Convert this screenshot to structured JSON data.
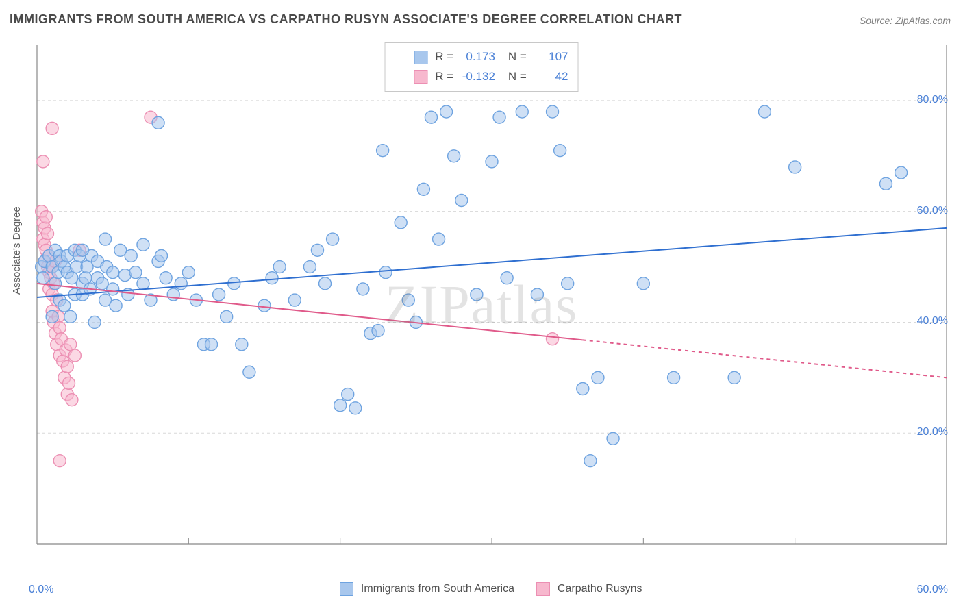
{
  "title": "IMMIGRANTS FROM SOUTH AMERICA VS CARPATHO RUSYN ASSOCIATE'S DEGREE CORRELATION CHART",
  "source": "Source: ZipAtlas.com",
  "watermark": "ZIPatlas",
  "ylabel": "Associate's Degree",
  "chart": {
    "type": "scatter",
    "xlim": [
      0,
      60
    ],
    "ylim": [
      0,
      90
    ],
    "xtick_step": 10,
    "ytick_step": 20,
    "x_label_min": "0.0%",
    "x_label_max": "60.0%",
    "y_labels": [
      "20.0%",
      "40.0%",
      "60.0%",
      "80.0%"
    ],
    "y_label_values": [
      20,
      40,
      60,
      80
    ],
    "grid_color": "#d8d8d8",
    "axis_color": "#888888",
    "tick_label_color": "#4a80d6",
    "background": "#ffffff",
    "marker_radius": 9,
    "marker_stroke_width": 1.4,
    "series": [
      {
        "name": "Immigrants from South America",
        "fill": "#a8c7ed",
        "stroke": "#6ea3e0",
        "fill_opacity": 0.55,
        "r_value": "0.173",
        "n_value": "107",
        "trend": {
          "x1": 0,
          "y1": 44.5,
          "x2": 60,
          "y2": 57,
          "color": "#2f6fd0",
          "width": 2
        },
        "points": [
          [
            0.3,
            50
          ],
          [
            0.4,
            48
          ],
          [
            0.5,
            51
          ],
          [
            0.8,
            52
          ],
          [
            1.0,
            41
          ],
          [
            1.0,
            50
          ],
          [
            1.2,
            53
          ],
          [
            1.2,
            47
          ],
          [
            1.4,
            49
          ],
          [
            1.5,
            52
          ],
          [
            1.5,
            44
          ],
          [
            1.6,
            51
          ],
          [
            1.8,
            50
          ],
          [
            1.8,
            43
          ],
          [
            2.0,
            52
          ],
          [
            2.0,
            49
          ],
          [
            2.2,
            41
          ],
          [
            2.3,
            48
          ],
          [
            2.5,
            53
          ],
          [
            2.5,
            45
          ],
          [
            2.6,
            50
          ],
          [
            2.8,
            52
          ],
          [
            3.0,
            47
          ],
          [
            3.0,
            45
          ],
          [
            3.2,
            48
          ],
          [
            3.3,
            50
          ],
          [
            3.5,
            46
          ],
          [
            3.6,
            52
          ],
          [
            3.8,
            40
          ],
          [
            4.0,
            48
          ],
          [
            4.0,
            51
          ],
          [
            4.3,
            47
          ],
          [
            4.5,
            44
          ],
          [
            4.6,
            50
          ],
          [
            5.0,
            49
          ],
          [
            5.0,
            46
          ],
          [
            5.2,
            43
          ],
          [
            5.5,
            53
          ],
          [
            5.8,
            48.5
          ],
          [
            6.0,
            45
          ],
          [
            6.2,
            52
          ],
          [
            6.5,
            49
          ],
          [
            7.0,
            47
          ],
          [
            7.0,
            54
          ],
          [
            7.5,
            44
          ],
          [
            8.0,
            51
          ],
          [
            8.2,
            52
          ],
          [
            8.5,
            48
          ],
          [
            9.0,
            45
          ],
          [
            9.5,
            47
          ],
          [
            10,
            49
          ],
          [
            10.5,
            44
          ],
          [
            11,
            36
          ],
          [
            11.5,
            36
          ],
          [
            12,
            45
          ],
          [
            12.5,
            41
          ],
          [
            13,
            47
          ],
          [
            13.5,
            36
          ],
          [
            14,
            31
          ],
          [
            15,
            43
          ],
          [
            15.5,
            48
          ],
          [
            16,
            50
          ],
          [
            17,
            44
          ],
          [
            18,
            50
          ],
          [
            18.5,
            53
          ],
          [
            19,
            47
          ],
          [
            19.5,
            55
          ],
          [
            20,
            25
          ],
          [
            20.5,
            27
          ],
          [
            21,
            24.5
          ],
          [
            21.5,
            46
          ],
          [
            22,
            38
          ],
          [
            22.5,
            38.5
          ],
          [
            22.8,
            71
          ],
          [
            23,
            49
          ],
          [
            24,
            58
          ],
          [
            24.5,
            44
          ],
          [
            25,
            40
          ],
          [
            25.5,
            64
          ],
          [
            26,
            77
          ],
          [
            26.5,
            55
          ],
          [
            27,
            78
          ],
          [
            27.5,
            70
          ],
          [
            28,
            62
          ],
          [
            29,
            45
          ],
          [
            30,
            69
          ],
          [
            30.5,
            77
          ],
          [
            31,
            48
          ],
          [
            32,
            78
          ],
          [
            33,
            45
          ],
          [
            34,
            78
          ],
          [
            34.5,
            71
          ],
          [
            35,
            47
          ],
          [
            36,
            28
          ],
          [
            36.5,
            15
          ],
          [
            37,
            30
          ],
          [
            38,
            19
          ],
          [
            40,
            47
          ],
          [
            42,
            30
          ],
          [
            46,
            30
          ],
          [
            48,
            78
          ],
          [
            50,
            68
          ],
          [
            56,
            65
          ],
          [
            57,
            67
          ],
          [
            8,
            76
          ],
          [
            3,
            53
          ],
          [
            4.5,
            55
          ]
        ]
      },
      {
        "name": "Carpatho Rusyns",
        "fill": "#f7b8ce",
        "stroke": "#ec8fb3",
        "fill_opacity": 0.55,
        "r_value": "-0.132",
        "n_value": "42",
        "trend": {
          "x1": 0,
          "y1": 47,
          "x2": 60,
          "y2": 30,
          "color": "#e05a8a",
          "width": 2,
          "dash_after_x": 36
        },
        "points": [
          [
            0.3,
            60
          ],
          [
            0.4,
            58
          ],
          [
            0.4,
            55
          ],
          [
            0.5,
            57
          ],
          [
            0.5,
            54
          ],
          [
            0.5,
            51
          ],
          [
            0.6,
            59
          ],
          [
            0.6,
            53
          ],
          [
            0.7,
            56
          ],
          [
            0.7,
            50
          ],
          [
            0.8,
            52
          ],
          [
            0.8,
            49
          ],
          [
            0.8,
            46
          ],
          [
            0.9,
            48
          ],
          [
            1.0,
            50
          ],
          [
            1.0,
            45
          ],
          [
            1.0,
            42
          ],
          [
            1.1,
            47
          ],
          [
            1.1,
            40
          ],
          [
            1.2,
            51
          ],
          [
            1.2,
            38
          ],
          [
            1.3,
            44
          ],
          [
            1.3,
            36
          ],
          [
            1.4,
            41
          ],
          [
            1.5,
            39
          ],
          [
            1.5,
            34
          ],
          [
            1.6,
            37
          ],
          [
            1.7,
            33
          ],
          [
            1.8,
            30
          ],
          [
            1.9,
            35
          ],
          [
            2.0,
            32
          ],
          [
            2.0,
            27
          ],
          [
            2.1,
            29
          ],
          [
            2.2,
            36
          ],
          [
            2.3,
            26
          ],
          [
            2.5,
            34
          ],
          [
            0.4,
            69
          ],
          [
            1.0,
            75
          ],
          [
            1.5,
            15
          ],
          [
            7.5,
            77
          ],
          [
            2.8,
            53
          ],
          [
            34,
            37
          ]
        ]
      }
    ]
  },
  "bottom_legend": {
    "series1_label": "Immigrants from South America",
    "series2_label": "Carpatho Rusyns"
  },
  "top_legend": {
    "row1": {
      "r_label": "R =",
      "r_value": "0.173",
      "n_label": "N =",
      "n_value": "107"
    },
    "row2": {
      "r_label": "R =",
      "r_value": "-0.132",
      "n_label": "N =",
      "n_value": "42"
    }
  }
}
